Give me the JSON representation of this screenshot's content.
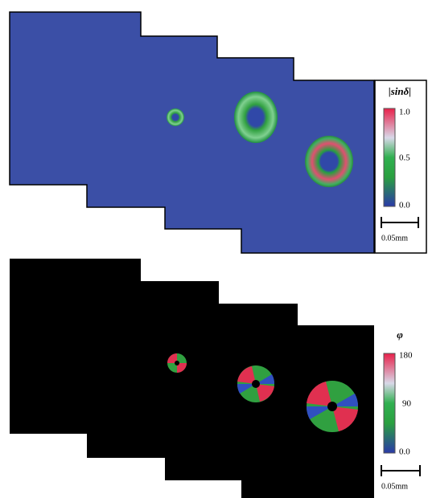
{
  "panels": [
    {
      "colorbar": {
        "title": "|sinδ|",
        "ticks": [
          "1.0",
          "0.5",
          "0.0"
        ]
      },
      "scale_bar": "0.05mm"
    },
    {
      "colorbar": {
        "title": "φ",
        "ticks": [
          "180",
          "90",
          "0.0"
        ]
      },
      "scale_bar": "0.05mm"
    }
  ]
}
